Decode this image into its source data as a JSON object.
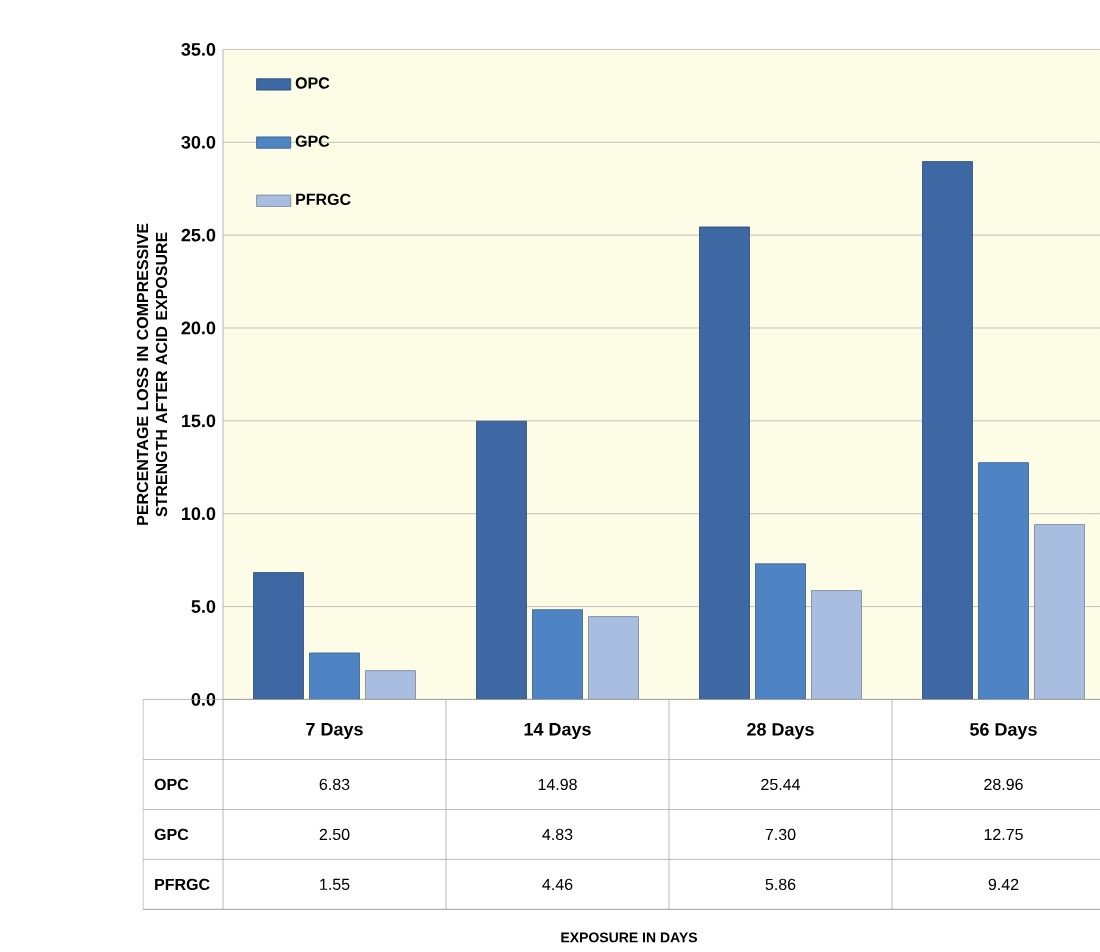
{
  "chart_data": {
    "type": "bar",
    "ylabel": "PERCENTAGE LOSS IN COMPRESSIVE STRENGTH AFTER ACID EXPOSURE",
    "annotations": [
      "EXPOSURE IN DAYS"
    ],
    "categories": [
      "7 Days",
      "14 Days",
      "28 Days",
      "56 Days"
    ],
    "series": [
      {
        "name": "OPC",
        "color": "#3d68a3",
        "values": [
          6.83,
          14.98,
          25.44,
          28.96
        ],
        "value_labels": [
          "6.83",
          "14.98",
          "25.44",
          "28.96"
        ]
      },
      {
        "name": "GPC",
        "color": "#4e84c4",
        "values": [
          2.5,
          4.83,
          7.3,
          12.75
        ],
        "value_labels": [
          "2.50",
          "4.83",
          "7.30",
          "12.75"
        ]
      },
      {
        "name": "PFRGC",
        "color": "#a8bddf",
        "values": [
          1.55,
          4.46,
          5.86,
          9.42
        ],
        "value_labels": [
          "1.55",
          "4.46",
          "5.86",
          "9.42"
        ]
      }
    ],
    "ylim": [
      0,
      35
    ],
    "yticks": [
      {
        "value": 0,
        "label": "0.0"
      },
      {
        "value": 5,
        "label": "5.0"
      },
      {
        "value": 10,
        "label": "10.0"
      },
      {
        "value": 15,
        "label": "15.0"
      },
      {
        "value": 20,
        "label": "20.0"
      },
      {
        "value": 25,
        "label": "25.0"
      },
      {
        "value": 30,
        "label": "30.0"
      },
      {
        "value": 35,
        "label": "35.0"
      }
    ],
    "grid": "y",
    "legend": "top left"
  }
}
